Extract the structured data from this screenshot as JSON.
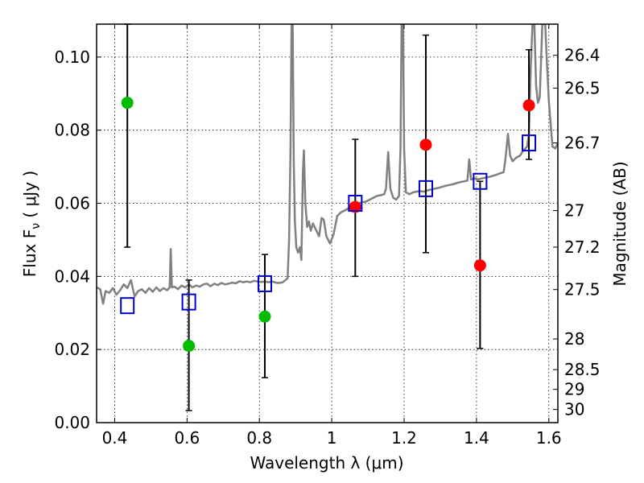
{
  "chart_data": {
    "type": "scatter",
    "xlabel": "Wavelength  λ (μm)",
    "ylabel": "Flux  F",
    "ylabel_sub": "ν",
    "ylabel_unit": "( μJy )",
    "y2label": "Magnitude (AB)",
    "xlim": [
      0.35,
      1.625
    ],
    "ylim": [
      0.0,
      0.109
    ],
    "grid": true,
    "x_ticks": [
      {
        "v": 0.4,
        "label": "0.4"
      },
      {
        "v": 0.6,
        "label": "0.6"
      },
      {
        "v": 0.8,
        "label": "0.8"
      },
      {
        "v": 1.0,
        "label": "1"
      },
      {
        "v": 1.2,
        "label": "1.2"
      },
      {
        "v": 1.4,
        "label": "1.4"
      },
      {
        "v": 1.6,
        "label": "1.6"
      }
    ],
    "y_ticks": [
      {
        "v": 0.0,
        "label": "0.00"
      },
      {
        "v": 0.02,
        "label": "0.02"
      },
      {
        "v": 0.04,
        "label": "0.04"
      },
      {
        "v": 0.06,
        "label": "0.06"
      },
      {
        "v": 0.08,
        "label": "0.08"
      },
      {
        "v": 0.1,
        "label": "0.10"
      }
    ],
    "y2_ticks": [
      {
        "label": "26.4",
        "flux": 0.1005
      },
      {
        "label": "26.5",
        "flux": 0.0915
      },
      {
        "label": "26.7",
        "flux": 0.0765
      },
      {
        "label": "27",
        "flux": 0.058
      },
      {
        "label": "27.2",
        "flux": 0.048
      },
      {
        "label": "27.5",
        "flux": 0.0364
      },
      {
        "label": "28",
        "flux": 0.0229
      },
      {
        "label": "28.5",
        "flux": 0.0145
      },
      {
        "label": "29",
        "flux": 0.0091
      },
      {
        "label": "30",
        "flux": 0.0036
      }
    ],
    "series": [
      {
        "marker": "circle",
        "color": "#00bb00",
        "points": [
          {
            "x": 0.435,
            "y": 0.0875,
            "err_low": 0.048,
            "err_high": 0.109
          },
          {
            "x": 0.605,
            "y": 0.021,
            "err_low": 0.0033,
            "err_high": 0.039
          },
          {
            "x": 0.815,
            "y": 0.029,
            "err_low": 0.0123,
            "err_high": 0.046
          }
        ]
      },
      {
        "marker": "circle",
        "color": "#ff0000",
        "points": [
          {
            "x": 1.065,
            "y": 0.059,
            "err_low": 0.04,
            "err_high": 0.0775
          },
          {
            "x": 1.26,
            "y": 0.076,
            "err_low": 0.0465,
            "err_high": 0.106
          },
          {
            "x": 1.41,
            "y": 0.043,
            "err_low": 0.0203,
            "err_high": 0.066
          },
          {
            "x": 1.545,
            "y": 0.0868,
            "err_low": 0.072,
            "err_high": 0.102
          }
        ]
      },
      {
        "marker": "square",
        "color": "#0000cc",
        "points": [
          {
            "x": 0.435,
            "y": 0.032
          },
          {
            "x": 0.605,
            "y": 0.033
          },
          {
            "x": 0.815,
            "y": 0.038
          },
          {
            "x": 1.065,
            "y": 0.06
          },
          {
            "x": 1.26,
            "y": 0.064
          },
          {
            "x": 1.41,
            "y": 0.066
          },
          {
            "x": 1.545,
            "y": 0.0765
          }
        ]
      },
      {
        "type": "line",
        "color": "#808080",
        "points": [
          [
            0.35,
            0.037
          ],
          [
            0.36,
            0.0365
          ],
          [
            0.368,
            0.0325
          ],
          [
            0.375,
            0.036
          ],
          [
            0.385,
            0.0355
          ],
          [
            0.395,
            0.0368
          ],
          [
            0.405,
            0.035
          ],
          [
            0.415,
            0.0362
          ],
          [
            0.425,
            0.0378
          ],
          [
            0.435,
            0.0368
          ],
          [
            0.445,
            0.039
          ],
          [
            0.455,
            0.0345
          ],
          [
            0.465,
            0.036
          ],
          [
            0.475,
            0.0365
          ],
          [
            0.485,
            0.0355
          ],
          [
            0.495,
            0.0368
          ],
          [
            0.505,
            0.0358
          ],
          [
            0.515,
            0.037
          ],
          [
            0.525,
            0.036
          ],
          [
            0.535,
            0.0368
          ],
          [
            0.545,
            0.0362
          ],
          [
            0.552,
            0.037
          ],
          [
            0.555,
            0.0475
          ],
          [
            0.558,
            0.037
          ],
          [
            0.565,
            0.0372
          ],
          [
            0.575,
            0.0365
          ],
          [
            0.585,
            0.0375
          ],
          [
            0.595,
            0.037
          ],
          [
            0.605,
            0.0378
          ],
          [
            0.615,
            0.037
          ],
          [
            0.625,
            0.0375
          ],
          [
            0.635,
            0.0372
          ],
          [
            0.645,
            0.0378
          ],
          [
            0.655,
            0.038
          ],
          [
            0.665,
            0.0373
          ],
          [
            0.675,
            0.038
          ],
          [
            0.685,
            0.0376
          ],
          [
            0.695,
            0.0382
          ],
          [
            0.705,
            0.0378
          ],
          [
            0.715,
            0.038
          ],
          [
            0.725,
            0.0383
          ],
          [
            0.735,
            0.0381
          ],
          [
            0.745,
            0.0387
          ],
          [
            0.755,
            0.0384
          ],
          [
            0.765,
            0.0386
          ],
          [
            0.775,
            0.0384
          ],
          [
            0.785,
            0.0388
          ],
          [
            0.795,
            0.0386
          ],
          [
            0.805,
            0.0385
          ],
          [
            0.815,
            0.0386
          ],
          [
            0.825,
            0.0384
          ],
          [
            0.835,
            0.0386
          ],
          [
            0.845,
            0.0383
          ],
          [
            0.855,
            0.0382
          ],
          [
            0.865,
            0.0384
          ],
          [
            0.872,
            0.039
          ],
          [
            0.878,
            0.0395
          ],
          [
            0.882,
            0.05
          ],
          [
            0.886,
            0.075
          ],
          [
            0.889,
            0.109
          ],
          [
            0.892,
            0.109
          ],
          [
            0.895,
            0.072
          ],
          [
            0.898,
            0.055
          ],
          [
            0.902,
            0.048
          ],
          [
            0.907,
            0.0465
          ],
          [
            0.912,
            0.048
          ],
          [
            0.916,
            0.0445
          ],
          [
            0.92,
            0.068
          ],
          [
            0.923,
            0.0745
          ],
          [
            0.927,
            0.06
          ],
          [
            0.932,
            0.0535
          ],
          [
            0.937,
            0.055
          ],
          [
            0.942,
            0.0525
          ],
          [
            0.948,
            0.0545
          ],
          [
            0.955,
            0.053
          ],
          [
            0.965,
            0.051
          ],
          [
            0.972,
            0.056
          ],
          [
            0.978,
            0.0555
          ],
          [
            0.985,
            0.051
          ],
          [
            0.995,
            0.049
          ],
          [
            1.005,
            0.0515
          ],
          [
            1.015,
            0.0565
          ],
          [
            1.025,
            0.0575
          ],
          [
            1.035,
            0.058
          ],
          [
            1.045,
            0.0585
          ],
          [
            1.055,
            0.059
          ],
          [
            1.065,
            0.0595
          ],
          [
            1.075,
            0.06
          ],
          [
            1.085,
            0.0603
          ],
          [
            1.095,
            0.0605
          ],
          [
            1.105,
            0.061
          ],
          [
            1.115,
            0.0615
          ],
          [
            1.125,
            0.062
          ],
          [
            1.135,
            0.0622
          ],
          [
            1.145,
            0.0625
          ],
          [
            1.15,
            0.064
          ],
          [
            1.156,
            0.074
          ],
          [
            1.162,
            0.064
          ],
          [
            1.17,
            0.0615
          ],
          [
            1.178,
            0.061
          ],
          [
            1.186,
            0.062
          ],
          [
            1.19,
            0.075
          ],
          [
            1.193,
            0.109
          ],
          [
            1.197,
            0.109
          ],
          [
            1.2,
            0.075
          ],
          [
            1.205,
            0.063
          ],
          [
            1.215,
            0.0625
          ],
          [
            1.225,
            0.063
          ],
          [
            1.235,
            0.0632
          ],
          [
            1.245,
            0.0633
          ],
          [
            1.255,
            0.0632
          ],
          [
            1.265,
            0.0635
          ],
          [
            1.275,
            0.0638
          ],
          [
            1.285,
            0.064
          ],
          [
            1.295,
            0.0642
          ],
          [
            1.305,
            0.0645
          ],
          [
            1.315,
            0.0648
          ],
          [
            1.325,
            0.065
          ],
          [
            1.335,
            0.0652
          ],
          [
            1.345,
            0.0655
          ],
          [
            1.355,
            0.0658
          ],
          [
            1.365,
            0.066
          ],
          [
            1.375,
            0.0662
          ],
          [
            1.38,
            0.072
          ],
          [
            1.385,
            0.0665
          ],
          [
            1.395,
            0.0668
          ],
          [
            1.405,
            0.0665
          ],
          [
            1.415,
            0.0668
          ],
          [
            1.425,
            0.067
          ],
          [
            1.435,
            0.0672
          ],
          [
            1.445,
            0.0675
          ],
          [
            1.455,
            0.0678
          ],
          [
            1.465,
            0.0682
          ],
          [
            1.475,
            0.0685
          ],
          [
            1.48,
            0.072
          ],
          [
            1.487,
            0.079
          ],
          [
            1.493,
            0.073
          ],
          [
            1.5,
            0.0715
          ],
          [
            1.51,
            0.0725
          ],
          [
            1.52,
            0.073
          ],
          [
            1.53,
            0.0745
          ],
          [
            1.54,
            0.0755
          ],
          [
            1.545,
            0.079
          ],
          [
            1.55,
            0.097
          ],
          [
            1.555,
            0.109
          ],
          [
            1.56,
            0.109
          ],
          [
            1.565,
            0.092
          ],
          [
            1.57,
            0.0875
          ],
          [
            1.575,
            0.089
          ],
          [
            1.582,
            0.109
          ],
          [
            1.59,
            0.109
          ],
          [
            1.595,
            0.098
          ],
          [
            1.6,
            0.088
          ],
          [
            1.61,
            0.0755
          ],
          [
            1.618,
            0.075
          ],
          [
            1.625,
            0.0765
          ]
        ]
      }
    ]
  }
}
